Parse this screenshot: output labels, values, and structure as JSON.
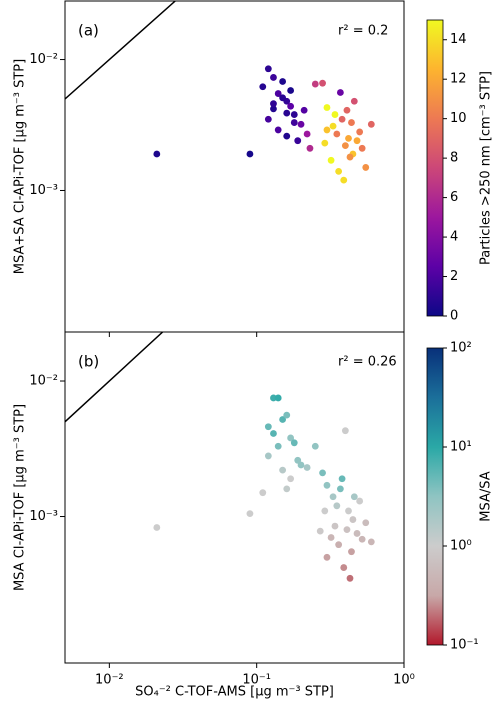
{
  "chart_data": [
    {
      "type": "scatter",
      "panel": "(a)",
      "annotation": "r² = 0.2",
      "y_label": "MSA+SA CI-APi-TOF [μg m⁻³ STP]",
      "log_x": true,
      "log_y": true,
      "one_to_one_line": true,
      "xlim": [
        0.005,
        1
      ],
      "xticks": [
        0.01,
        0.1,
        1
      ],
      "ylim": [
        8.3e-05,
        0.028
      ],
      "yticks": [
        {
          "value": 0.01,
          "label": "10⁻²"
        },
        {
          "value": 0.001,
          "label": "10⁻³"
        }
      ],
      "x": [
        0.021,
        0.09,
        0.12,
        0.13,
        0.11,
        0.14,
        0.15,
        0.16,
        0.13,
        0.12,
        0.17,
        0.18,
        0.2,
        0.14,
        0.16,
        0.19,
        0.22,
        0.15,
        0.13,
        0.17,
        0.21,
        0.23,
        0.25,
        0.18,
        0.16,
        0.28,
        0.3,
        0.33,
        0.35,
        0.38,
        0.4,
        0.42,
        0.45,
        0.5,
        0.55,
        0.32,
        0.36,
        0.41,
        0.44,
        0.48,
        0.3,
        0.34,
        0.39,
        0.43,
        0.52,
        0.37,
        0.46,
        0.29,
        0.6
      ],
      "values": [
        0.0019,
        0.0019,
        0.0085,
        0.0073,
        0.0062,
        0.0055,
        0.0068,
        0.0048,
        0.0042,
        0.0035,
        0.0044,
        0.0038,
        0.0032,
        0.0029,
        0.0026,
        0.0024,
        0.0027,
        0.0051,
        0.0046,
        0.0058,
        0.0041,
        0.0021,
        0.0065,
        0.0033,
        0.0039,
        0.0066,
        0.0043,
        0.0031,
        0.0027,
        0.0035,
        0.0022,
        0.0025,
        0.0019,
        0.0028,
        0.0015,
        0.0017,
        0.0014,
        0.0041,
        0.0033,
        0.0024,
        0.0029,
        0.0038,
        0.0012,
        0.0018,
        0.0021,
        0.0056,
        0.0048,
        0.0023,
        0.0032
      ],
      "color_values": [
        0.5,
        0.3,
        1,
        1.5,
        0.8,
        2,
        0.5,
        1.2,
        0.7,
        1.8,
        2.5,
        1,
        3,
        2,
        0.6,
        1.4,
        5,
        0.9,
        1.1,
        0.4,
        2.2,
        6,
        7,
        1.6,
        0.9,
        8,
        15,
        14,
        10,
        9,
        11,
        12,
        13,
        10,
        11,
        15,
        14,
        9,
        10,
        12,
        13,
        15,
        14,
        11,
        10,
        3,
        8,
        14,
        9
      ],
      "colorbar": {
        "label": "Particles >250 nm [cm⁻³ STP]",
        "colormap": "plasma",
        "log": false,
        "lim": [
          0,
          15
        ],
        "ticks": [
          0,
          2,
          4,
          6,
          8,
          10,
          12,
          14
        ]
      }
    },
    {
      "type": "scatter",
      "panel": "(b)",
      "annotation": "r² = 0.26",
      "y_label": "MSA CI-APi-TOF [μg m⁻³ STP]",
      "x_label": "SO₄⁻² C-TOF-AMS [μg m⁻³ STP]",
      "log_x": true,
      "log_y": true,
      "one_to_one_line": true,
      "xlim": [
        0.005,
        1
      ],
      "xticks": [
        {
          "value": 0.01,
          "label": "10⁻²"
        },
        {
          "value": 0.1,
          "label": "10⁻¹"
        },
        {
          "value": 1,
          "label": "10⁰"
        }
      ],
      "ylim": [
        8.3e-05,
        0.023
      ],
      "yticks": [
        {
          "value": 0.01,
          "label": "10⁻²"
        },
        {
          "value": 0.001,
          "label": "10⁻³"
        }
      ],
      "x": [
        0.021,
        0.09,
        0.13,
        0.14,
        0.12,
        0.15,
        0.16,
        0.17,
        0.14,
        0.12,
        0.18,
        0.19,
        0.2,
        0.15,
        0.17,
        0.22,
        0.25,
        0.13,
        0.16,
        0.11,
        0.28,
        0.3,
        0.33,
        0.35,
        0.38,
        0.4,
        0.42,
        0.45,
        0.5,
        0.55,
        0.32,
        0.36,
        0.41,
        0.44,
        0.48,
        0.3,
        0.34,
        0.39,
        0.43,
        0.52,
        0.37,
        0.46,
        0.29,
        0.6,
        0.27
      ],
      "values": [
        0.00083,
        0.00105,
        0.0075,
        0.0075,
        0.0046,
        0.0052,
        0.0056,
        0.0038,
        0.0033,
        0.0028,
        0.0035,
        0.0026,
        0.0024,
        0.0022,
        0.0019,
        0.0023,
        0.0033,
        0.0041,
        0.0016,
        0.0015,
        0.0021,
        0.0017,
        0.0014,
        0.0012,
        0.0019,
        0.0043,
        0.0011,
        0.00095,
        0.0013,
        0.0009,
        0.0007,
        0.00062,
        0.0008,
        0.00055,
        0.00075,
        0.0005,
        0.00085,
        0.00042,
        0.00035,
        0.00068,
        0.0016,
        0.0014,
        0.0011,
        0.00065,
        0.00078
      ],
      "color_values": [
        1,
        1,
        8,
        9,
        5,
        6,
        4,
        3,
        4,
        2,
        5,
        3,
        3,
        1.5,
        1,
        2,
        3,
        6,
        1.2,
        1,
        4,
        3,
        2,
        1.5,
        5,
        1,
        1,
        0.8,
        1,
        0.6,
        0.5,
        0.4,
        0.7,
        0.3,
        0.6,
        0.3,
        0.8,
        0.25,
        0.2,
        0.5,
        4,
        2,
        1,
        0.5,
        0.9
      ],
      "colorbar": {
        "label": "MSA/SA",
        "colormap": "red-gray-teal-blue",
        "log": true,
        "lim": [
          0.1,
          100
        ],
        "ticks": [
          {
            "value": 0.1,
            "label": "10⁻¹"
          },
          {
            "value": 1,
            "label": "10⁰"
          },
          {
            "value": 10,
            "label": "10¹"
          },
          {
            "value": 100,
            "label": "10²"
          }
        ]
      }
    }
  ]
}
